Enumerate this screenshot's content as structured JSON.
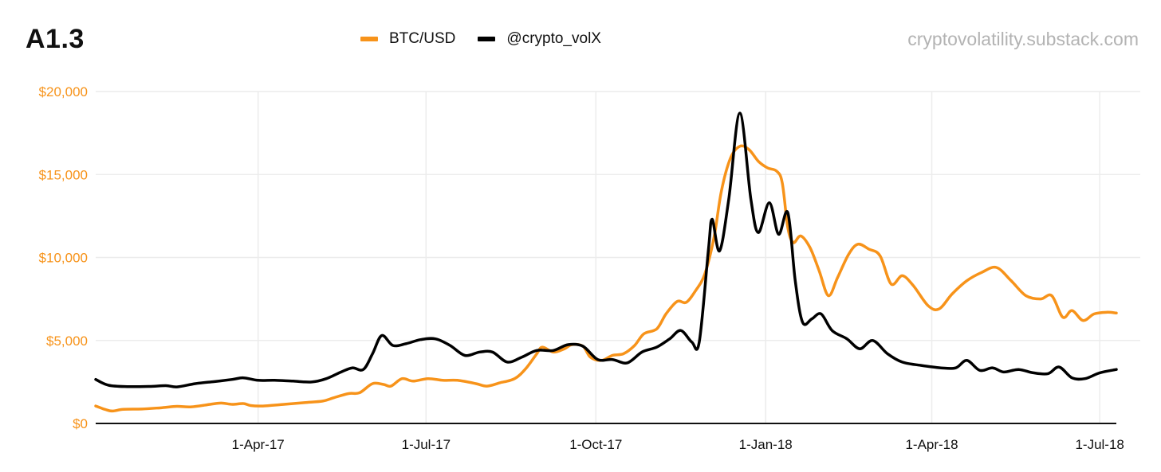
{
  "header": {
    "chart_id": "A1.3",
    "source": "cryptovolatility.substack.com"
  },
  "legend": [
    {
      "label": "BTC/USD",
      "color": "#f7931a"
    },
    {
      "label": "@crypto_volX",
      "color": "#000000"
    }
  ],
  "chart_data": {
    "type": "line",
    "title": "A1.3",
    "xlabel": "",
    "ylabel": "",
    "ylim": [
      0,
      20000
    ],
    "x_range": [
      "2017-01-03",
      "2018-07-10"
    ],
    "grid": true,
    "legend_position": "top-center",
    "y_ticks": [
      {
        "value": 0,
        "label": "$0"
      },
      {
        "value": 5000,
        "label": "$5,000"
      },
      {
        "value": 10000,
        "label": "$10,000"
      },
      {
        "value": 15000,
        "label": "$15,000"
      },
      {
        "value": 20000,
        "label": "$20,000"
      }
    ],
    "x_ticks": [
      {
        "date": "2017-04-01",
        "label": "1-Apr-17"
      },
      {
        "date": "2017-07-01",
        "label": "1-Jul-17"
      },
      {
        "date": "2017-10-01",
        "label": "1-Oct-17"
      },
      {
        "date": "2018-01-01",
        "label": "1-Jan-18"
      },
      {
        "date": "2018-04-01",
        "label": "1-Apr-18"
      },
      {
        "date": "2018-07-01",
        "label": "1-Jul-18"
      }
    ],
    "series": [
      {
        "name": "BTC/USD",
        "color": "#f7931a",
        "points": [
          [
            "2017-01-03",
            1050
          ],
          [
            "2017-01-08",
            850
          ],
          [
            "2017-01-12",
            750
          ],
          [
            "2017-01-18",
            850
          ],
          [
            "2017-01-28",
            870
          ],
          [
            "2017-02-08",
            950
          ],
          [
            "2017-02-16",
            1030
          ],
          [
            "2017-02-24",
            1000
          ],
          [
            "2017-03-06",
            1150
          ],
          [
            "2017-03-12",
            1230
          ],
          [
            "2017-03-18",
            1150
          ],
          [
            "2017-03-24",
            1200
          ],
          [
            "2017-03-28",
            1080
          ],
          [
            "2017-04-03",
            1050
          ],
          [
            "2017-04-15",
            1150
          ],
          [
            "2017-04-26",
            1250
          ],
          [
            "2017-05-06",
            1350
          ],
          [
            "2017-05-12",
            1550
          ],
          [
            "2017-05-20",
            1800
          ],
          [
            "2017-05-26",
            1850
          ],
          [
            "2017-06-02",
            2400
          ],
          [
            "2017-06-08",
            2350
          ],
          [
            "2017-06-12",
            2250
          ],
          [
            "2017-06-18",
            2700
          ],
          [
            "2017-06-24",
            2550
          ],
          [
            "2017-07-02",
            2700
          ],
          [
            "2017-07-10",
            2600
          ],
          [
            "2017-07-18",
            2600
          ],
          [
            "2017-07-28",
            2400
          ],
          [
            "2017-08-03",
            2250
          ],
          [
            "2017-08-10",
            2450
          ],
          [
            "2017-08-18",
            2700
          ],
          [
            "2017-08-24",
            3300
          ],
          [
            "2017-08-30",
            4200
          ],
          [
            "2017-09-02",
            4600
          ],
          [
            "2017-09-08",
            4300
          ],
          [
            "2017-09-14",
            4500
          ],
          [
            "2017-09-18",
            4750
          ],
          [
            "2017-09-24",
            4650
          ],
          [
            "2017-09-28",
            4000
          ],
          [
            "2017-10-04",
            3800
          ],
          [
            "2017-10-10",
            4100
          ],
          [
            "2017-10-16",
            4200
          ],
          [
            "2017-10-22",
            4700
          ],
          [
            "2017-10-27",
            5400
          ],
          [
            "2017-11-03",
            5700
          ],
          [
            "2017-11-08",
            6600
          ],
          [
            "2017-11-14",
            7350
          ],
          [
            "2017-11-19",
            7300
          ],
          [
            "2017-11-24",
            8000
          ],
          [
            "2017-11-29",
            9000
          ],
          [
            "2017-12-04",
            11200
          ],
          [
            "2017-12-08",
            14000
          ],
          [
            "2017-12-13",
            16000
          ],
          [
            "2017-12-18",
            16700
          ],
          [
            "2017-12-23",
            16500
          ],
          [
            "2017-12-28",
            15800
          ],
          [
            "2018-01-02",
            15400
          ],
          [
            "2018-01-07",
            15200
          ],
          [
            "2018-01-10",
            14500
          ],
          [
            "2018-01-13",
            11800
          ],
          [
            "2018-01-16",
            10900
          ],
          [
            "2018-01-20",
            11300
          ],
          [
            "2018-01-25",
            10600
          ],
          [
            "2018-01-30",
            9200
          ],
          [
            "2018-02-04",
            7700
          ],
          [
            "2018-02-09",
            8800
          ],
          [
            "2018-02-15",
            10200
          ],
          [
            "2018-02-20",
            10800
          ],
          [
            "2018-02-26",
            10500
          ],
          [
            "2018-03-04",
            10100
          ],
          [
            "2018-03-10",
            8400
          ],
          [
            "2018-03-16",
            8900
          ],
          [
            "2018-03-22",
            8300
          ],
          [
            "2018-03-30",
            7100
          ],
          [
            "2018-04-05",
            6900
          ],
          [
            "2018-04-12",
            7800
          ],
          [
            "2018-04-20",
            8600
          ],
          [
            "2018-04-28",
            9100
          ],
          [
            "2018-05-06",
            9400
          ],
          [
            "2018-05-14",
            8600
          ],
          [
            "2018-05-22",
            7700
          ],
          [
            "2018-05-30",
            7500
          ],
          [
            "2018-06-05",
            7700
          ],
          [
            "2018-06-11",
            6400
          ],
          [
            "2018-06-16",
            6800
          ],
          [
            "2018-06-22",
            6200
          ],
          [
            "2018-06-28",
            6600
          ],
          [
            "2018-07-05",
            6700
          ],
          [
            "2018-07-10",
            6650
          ]
        ]
      },
      {
        "name": "@crypto_volX",
        "color": "#000000",
        "points": [
          [
            "2017-01-03",
            2650
          ],
          [
            "2017-01-10",
            2300
          ],
          [
            "2017-01-20",
            2220
          ],
          [
            "2017-02-01",
            2230
          ],
          [
            "2017-02-10",
            2280
          ],
          [
            "2017-02-16",
            2200
          ],
          [
            "2017-02-26",
            2400
          ],
          [
            "2017-03-08",
            2520
          ],
          [
            "2017-03-18",
            2650
          ],
          [
            "2017-03-24",
            2750
          ],
          [
            "2017-04-01",
            2600
          ],
          [
            "2017-04-10",
            2600
          ],
          [
            "2017-04-20",
            2550
          ],
          [
            "2017-04-30",
            2500
          ],
          [
            "2017-05-08",
            2700
          ],
          [
            "2017-05-16",
            3100
          ],
          [
            "2017-05-22",
            3350
          ],
          [
            "2017-05-28",
            3250
          ],
          [
            "2017-06-02",
            4200
          ],
          [
            "2017-06-07",
            5300
          ],
          [
            "2017-06-13",
            4700
          ],
          [
            "2017-06-20",
            4800
          ],
          [
            "2017-06-28",
            5050
          ],
          [
            "2017-07-06",
            5100
          ],
          [
            "2017-07-14",
            4700
          ],
          [
            "2017-07-22",
            4100
          ],
          [
            "2017-07-30",
            4300
          ],
          [
            "2017-08-06",
            4300
          ],
          [
            "2017-08-14",
            3700
          ],
          [
            "2017-08-22",
            4000
          ],
          [
            "2017-08-30",
            4400
          ],
          [
            "2017-09-08",
            4400
          ],
          [
            "2017-09-16",
            4750
          ],
          [
            "2017-09-24",
            4650
          ],
          [
            "2017-10-02",
            3850
          ],
          [
            "2017-10-10",
            3850
          ],
          [
            "2017-10-18",
            3650
          ],
          [
            "2017-10-26",
            4300
          ],
          [
            "2017-11-03",
            4600
          ],
          [
            "2017-11-10",
            5100
          ],
          [
            "2017-11-16",
            5600
          ],
          [
            "2017-11-22",
            4900
          ],
          [
            "2017-11-26",
            4900
          ],
          [
            "2017-12-01",
            10500
          ],
          [
            "2017-12-03",
            12300
          ],
          [
            "2017-12-07",
            10400
          ],
          [
            "2017-12-12",
            13500
          ],
          [
            "2017-12-18",
            18700
          ],
          [
            "2017-12-24",
            13500
          ],
          [
            "2017-12-28",
            11500
          ],
          [
            "2018-01-03",
            13300
          ],
          [
            "2018-01-08",
            11400
          ],
          [
            "2018-01-13",
            12700
          ],
          [
            "2018-01-17",
            8600
          ],
          [
            "2018-01-21",
            6100
          ],
          [
            "2018-01-26",
            6300
          ],
          [
            "2018-01-31",
            6600
          ],
          [
            "2018-02-06",
            5600
          ],
          [
            "2018-02-14",
            5100
          ],
          [
            "2018-02-21",
            4500
          ],
          [
            "2018-02-28",
            5000
          ],
          [
            "2018-03-08",
            4200
          ],
          [
            "2018-03-16",
            3700
          ],
          [
            "2018-03-26",
            3500
          ],
          [
            "2018-04-06",
            3350
          ],
          [
            "2018-04-14",
            3350
          ],
          [
            "2018-04-20",
            3800
          ],
          [
            "2018-04-27",
            3200
          ],
          [
            "2018-05-04",
            3350
          ],
          [
            "2018-05-10",
            3100
          ],
          [
            "2018-05-18",
            3250
          ],
          [
            "2018-05-26",
            3050
          ],
          [
            "2018-06-03",
            3000
          ],
          [
            "2018-06-09",
            3400
          ],
          [
            "2018-06-16",
            2750
          ],
          [
            "2018-06-23",
            2700
          ],
          [
            "2018-07-01",
            3050
          ],
          [
            "2018-07-10",
            3250
          ]
        ]
      }
    ]
  }
}
